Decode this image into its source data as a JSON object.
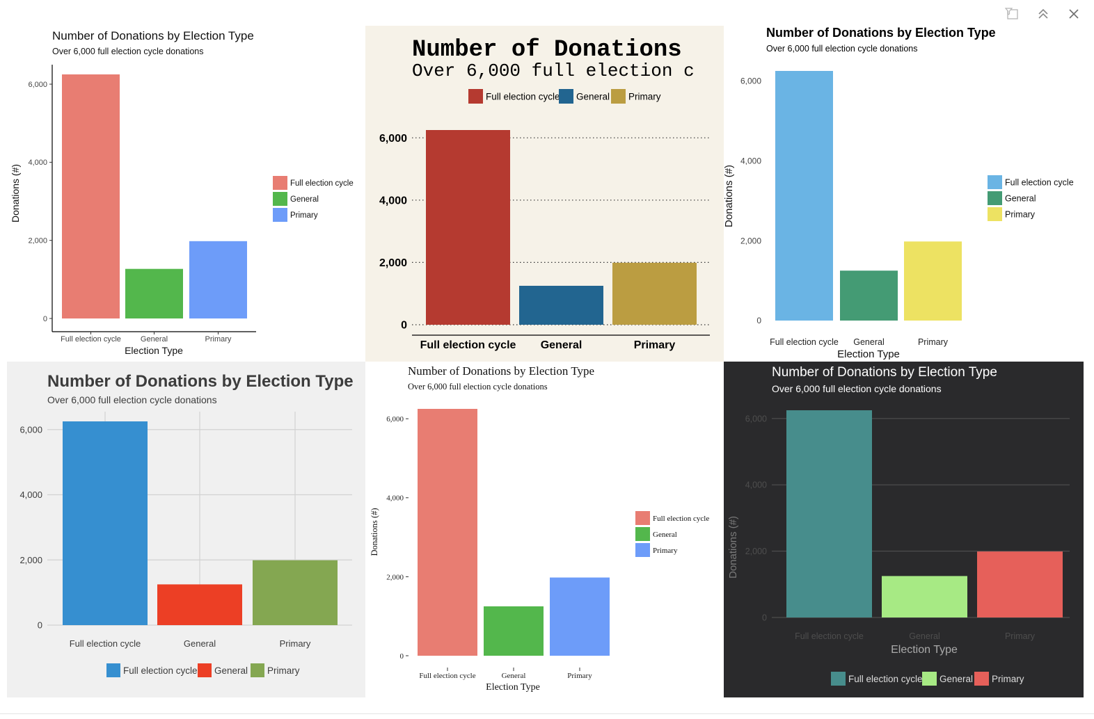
{
  "toolbar": [
    {
      "icon": "filter-icon"
    },
    {
      "icon": "chevron-up-double-icon"
    },
    {
      "icon": "close-icon"
    }
  ],
  "chart_data": [
    {
      "type": "bar",
      "theme": "ggplot-classic",
      "title": "Number of Donations by Election Type",
      "subtitle": "Over 6,000 full election cycle donations",
      "xlabel": "Election Type",
      "ylabel": "Donations (#)",
      "categories": [
        "Full election cycle",
        "General",
        "Primary"
      ],
      "values": [
        6250,
        1270,
        1980
      ],
      "yticks": [
        "0",
        "2,000",
        "4,000",
        "6,000"
      ],
      "ylim": [
        0,
        6500
      ],
      "grid": false,
      "legend_position": "right",
      "legend": [
        "Full election cycle",
        "General",
        "Primary"
      ],
      "colors": [
        "#e87d72",
        "#53b74c",
        "#6d9cf9"
      ],
      "background": "#ffffff"
    },
    {
      "type": "bar",
      "theme": "wsj",
      "title": "Number of Donations",
      "subtitle": "Over 6,000 full election c",
      "xlabel": "",
      "ylabel": "",
      "categories": [
        "Full election cycle",
        "General",
        "Primary"
      ],
      "values": [
        6250,
        1250,
        1990
      ],
      "yticks": [
        "0",
        "2,000",
        "4,000",
        "6,000"
      ],
      "ylim": [
        0,
        6500
      ],
      "grid": true,
      "legend_position": "top",
      "legend": [
        "Full election cycle",
        "General",
        "Primary"
      ],
      "colors": [
        "#b53a30",
        "#226590",
        "#bb9d41"
      ],
      "background": "#f6f2e8"
    },
    {
      "type": "bar",
      "theme": "ggplot-blank",
      "title": "Number of Donations by Election Type",
      "subtitle": "Over 6,000 full election cycle donations",
      "xlabel": "Election Type",
      "ylabel": "Donations (#)",
      "categories": [
        "Full election cycle",
        "General",
        "Primary"
      ],
      "values": [
        6250,
        1250,
        1980
      ],
      "yticks": [
        "0",
        "2,000",
        "4,000",
        "6,000"
      ],
      "ylim": [
        0,
        6500
      ],
      "grid": false,
      "legend_position": "right",
      "legend": [
        "Full election cycle",
        "General",
        "Primary"
      ],
      "colors": [
        "#6ab4e4",
        "#449b74",
        "#ede262"
      ],
      "background": "#ffffff"
    },
    {
      "type": "bar",
      "theme": "fivethirtyeight",
      "title": "Number of Donations by Election Type",
      "subtitle": "Over 6,000 full election cycle donations",
      "xlabel": "",
      "ylabel": "",
      "categories": [
        "Full election cycle",
        "General",
        "Primary"
      ],
      "values": [
        6250,
        1250,
        1990
      ],
      "yticks": [
        "0",
        "2,000",
        "4,000",
        "6,000"
      ],
      "ylim": [
        0,
        6500
      ],
      "grid": true,
      "legend_position": "bottom",
      "legend": [
        "Full election cycle",
        "General",
        "Primary"
      ],
      "colors": [
        "#368fd0",
        "#ec3f25",
        "#84a751"
      ],
      "background": "#f0f0f0"
    },
    {
      "type": "bar",
      "theme": "tufte",
      "title": "Number of Donations by Election Type",
      "subtitle": "Over 6,000 full election cycle donations",
      "xlabel": "Election Type",
      "ylabel": "Donations (#)",
      "categories": [
        "Full election cycle",
        "General",
        "Primary"
      ],
      "values": [
        6250,
        1250,
        1980
      ],
      "yticks": [
        "0",
        "2,000",
        "4,000",
        "6,000"
      ],
      "ylim": [
        0,
        6500
      ],
      "grid": false,
      "legend_position": "right",
      "legend": [
        "Full election cycle",
        "General",
        "Primary"
      ],
      "colors": [
        "#e87d72",
        "#53b74c",
        "#6d9cf9"
      ],
      "background": "#ffffff"
    },
    {
      "type": "bar",
      "theme": "dark",
      "title": "Number of Donations by Election Type",
      "subtitle": "Over 6,000 full election cycle donations",
      "xlabel": "Election Type",
      "ylabel": "Donations (#)",
      "categories": [
        "Full election cycle",
        "General",
        "Primary"
      ],
      "values": [
        6250,
        1250,
        1990
      ],
      "yticks": [
        "0",
        "2,000",
        "4,000",
        "6,000"
      ],
      "ylim": [
        0,
        6500
      ],
      "grid": true,
      "legend_position": "bottom",
      "legend": [
        "Full election cycle",
        "General",
        "Primary"
      ],
      "colors": [
        "#478d8c",
        "#a7ea84",
        "#e6605a"
      ],
      "background": "#2a2a2c"
    }
  ]
}
